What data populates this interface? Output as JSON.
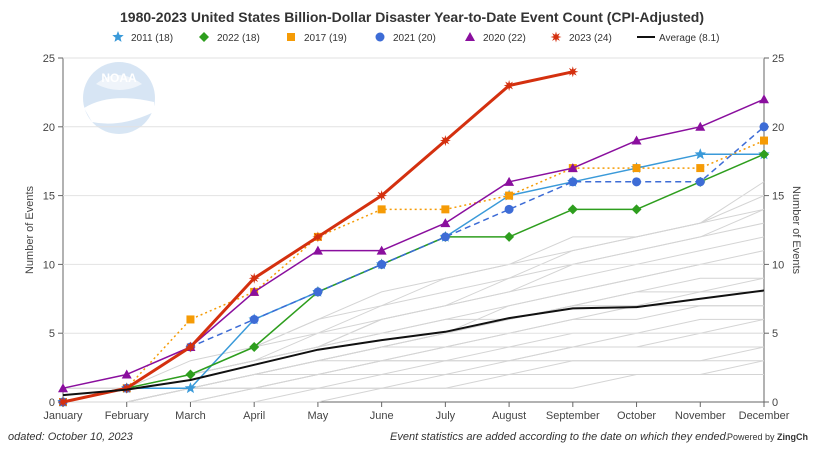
{
  "title": "1980-2023 United States Billion-Dollar Disaster Year-to-Date Event Count (CPI-Adjusted)",
  "logo_text": "NOAA",
  "footer": {
    "updated": "odated: October 10, 2023",
    "note": "Event statistics are added according to the date on which they ended.",
    "powered_prefix": "Powered by ",
    "powered_brand": "ZingCh"
  },
  "chart_data": {
    "type": "line",
    "title": "1980-2023 United States Billion-Dollar Disaster Year-to-Date Event Count (CPI-Adjusted)",
    "ylabel_left": "Number of Events",
    "ylabel_right": "Number of Events",
    "xlabel": "",
    "ylim": [
      0,
      25
    ],
    "yticks": [
      0,
      5,
      10,
      15,
      20,
      25
    ],
    "categories": [
      "January",
      "February",
      "March",
      "April",
      "May",
      "June",
      "July",
      "August",
      "September",
      "October",
      "November",
      "December"
    ],
    "background_series_color": "#d4d4d4",
    "series": [
      {
        "name": "2011 (18)",
        "color": "#3a9ad9",
        "marker": "star5",
        "dash": "solid",
        "width": 1.5,
        "values": [
          0,
          1,
          1,
          6,
          8,
          10,
          12,
          15,
          16,
          17,
          18,
          18
        ]
      },
      {
        "name": "2022 (18)",
        "color": "#2e9e1e",
        "marker": "diamond",
        "dash": "solid",
        "width": 1.5,
        "values": [
          0,
          1,
          2,
          4,
          8,
          10,
          12,
          12,
          14,
          14,
          16,
          18
        ]
      },
      {
        "name": "2017 (19)",
        "color": "#f59b06",
        "marker": "square",
        "dash": "dotted",
        "width": 1.5,
        "values": [
          0,
          1,
          6,
          8,
          12,
          14,
          14,
          15,
          17,
          17,
          17,
          19
        ]
      },
      {
        "name": "2021 (20)",
        "color": "#3d6cd6",
        "marker": "circle",
        "dash": "dashed",
        "width": 1.5,
        "values": [
          0,
          1,
          4,
          6,
          8,
          10,
          12,
          14,
          16,
          16,
          16,
          20
        ]
      },
      {
        "name": "2020 (22)",
        "color": "#8a0f9e",
        "marker": "triangle",
        "dash": "solid",
        "width": 1.5,
        "values": [
          1,
          2,
          4,
          8,
          11,
          11,
          13,
          16,
          17,
          19,
          20,
          22
        ]
      },
      {
        "name": "2023 (24)",
        "color": "#d4300f",
        "marker": "burst",
        "dash": "solid",
        "width": 3,
        "values": [
          0,
          1,
          4,
          9,
          12,
          15,
          19,
          23,
          24,
          null,
          null,
          null
        ]
      },
      {
        "name": "Average (8.1)",
        "color": "#111111",
        "marker": "none",
        "dash": "solid",
        "width": 2,
        "values": [
          0.5,
          0.9,
          1.6,
          2.7,
          3.8,
          4.5,
          5.1,
          6.1,
          6.8,
          6.9,
          7.5,
          8.1
        ]
      }
    ],
    "background_series": [
      [
        0,
        0,
        1,
        1,
        2,
        3,
        3,
        4,
        4,
        5,
        5,
        6
      ],
      [
        0,
        0,
        0,
        1,
        1,
        1,
        2,
        2,
        3,
        3,
        3,
        4
      ],
      [
        0,
        1,
        1,
        2,
        3,
        4,
        5,
        6,
        7,
        7,
        8,
        8
      ],
      [
        0,
        1,
        2,
        3,
        4,
        5,
        6,
        7,
        8,
        9,
        10,
        11
      ],
      [
        0,
        0,
        1,
        2,
        3,
        3,
        4,
        5,
        6,
        7,
        7,
        7
      ],
      [
        0,
        1,
        2,
        4,
        5,
        6,
        7,
        8,
        9,
        10,
        11,
        12
      ],
      [
        1,
        1,
        2,
        3,
        5,
        7,
        8,
        9,
        10,
        11,
        12,
        13
      ],
      [
        0,
        1,
        2,
        3,
        4,
        6,
        7,
        8,
        10,
        11,
        12,
        14
      ],
      [
        0,
        1,
        3,
        4,
        6,
        7,
        9,
        10,
        12,
        12,
        13,
        15
      ],
      [
        0,
        0,
        1,
        1,
        2,
        2,
        3,
        3,
        4,
        4,
        5,
        5
      ],
      [
        1,
        1,
        1,
        2,
        3,
        4,
        4,
        5,
        6,
        6,
        7,
        7
      ],
      [
        0,
        0,
        0,
        0,
        1,
        1,
        1,
        2,
        2,
        2,
        2,
        3
      ],
      [
        0,
        1,
        2,
        3,
        4,
        5,
        6,
        6,
        7,
        8,
        9,
        9
      ],
      [
        0,
        1,
        2,
        4,
        6,
        8,
        9,
        10,
        11,
        12,
        13,
        16
      ],
      [
        0,
        0,
        1,
        2,
        3,
        4,
        5,
        7,
        8,
        9,
        10,
        10
      ],
      [
        0,
        0,
        1,
        2,
        2,
        3,
        4,
        4,
        5,
        5,
        6,
        6
      ],
      [
        0,
        1,
        1,
        2,
        3,
        4,
        5,
        6,
        7,
        8,
        8,
        9
      ],
      [
        0,
        0,
        1,
        1,
        2,
        3,
        3,
        3,
        4,
        4,
        4,
        4
      ],
      [
        0,
        0,
        0,
        1,
        1,
        2,
        2,
        3,
        3,
        3,
        3,
        3
      ],
      [
        0,
        0,
        0,
        0,
        0,
        1,
        1,
        1,
        1,
        2,
        2,
        2
      ],
      [
        0,
        1,
        2,
        3,
        4,
        6,
        7,
        9,
        11,
        12,
        13,
        14
      ]
    ]
  }
}
